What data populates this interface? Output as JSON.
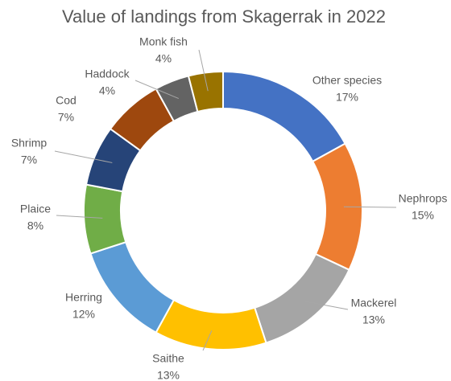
{
  "chart_data": {
    "type": "pie",
    "title": "Value of landings from Skagerrak in 2022",
    "categories": [
      "Other species",
      "Nephrops",
      "Mackerel",
      "Saithe",
      "Herring",
      "Plaice",
      "Shrimp",
      "Cod",
      "Haddock",
      "Monk fish"
    ],
    "values": [
      17,
      15,
      13,
      13,
      12,
      8,
      7,
      7,
      4,
      4
    ],
    "value_labels": [
      "17%",
      "15%",
      "13%",
      "13%",
      "12%",
      "8%",
      "7%",
      "7%",
      "4%",
      "4%"
    ],
    "colors": [
      "#4472c4",
      "#ed7d31",
      "#a5a5a5",
      "#ffc000",
      "#5b9bd5",
      "#70ad47",
      "#264478",
      "#9e480e",
      "#636363",
      "#997300"
    ]
  }
}
